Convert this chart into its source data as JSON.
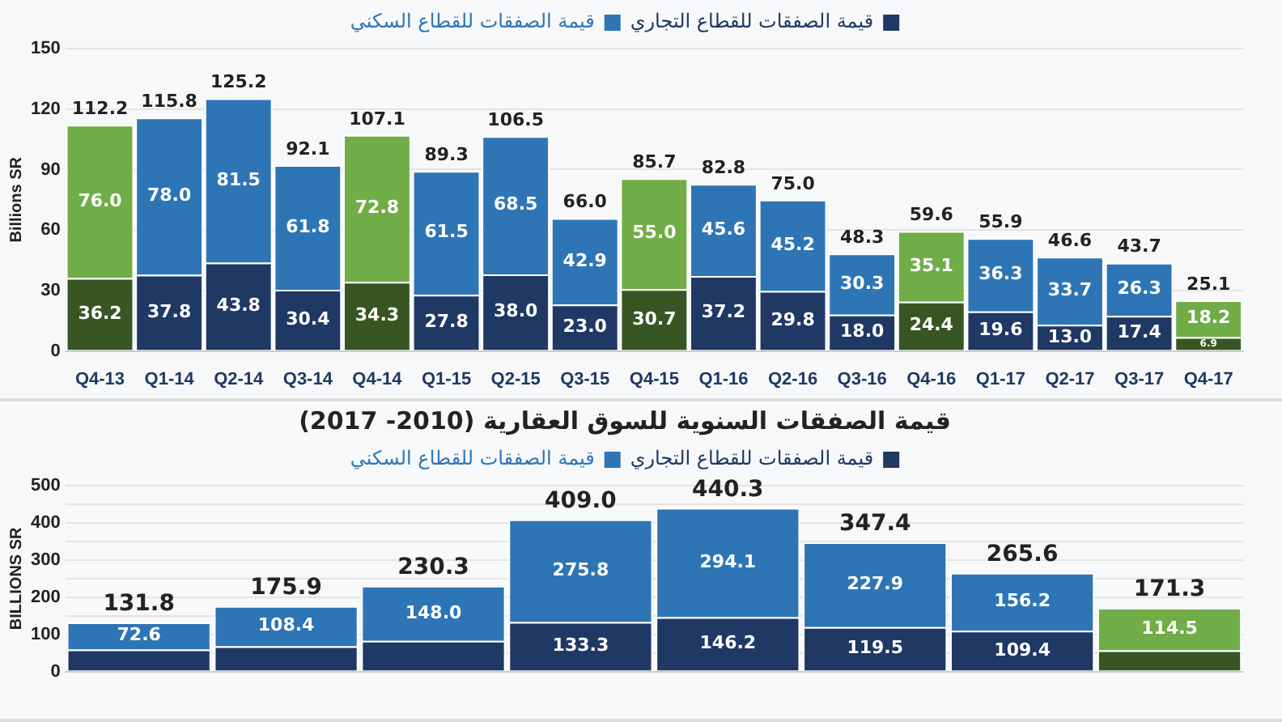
{
  "chart_data": [
    {
      "type": "bar",
      "stacked": true,
      "ylabel": "Billions SR",
      "legend": "top",
      "grid": "y",
      "categories": [
        "Q4-13",
        "Q1-14",
        "Q2-14",
        "Q3-14",
        "Q4-14",
        "Q1-15",
        "Q2-15",
        "Q3-15",
        "Q4-15",
        "Q1-16",
        "Q2-16",
        "Q3-16",
        "Q4-16",
        "Q1-17",
        "Q2-17",
        "Q3-17",
        "Q4-17"
      ],
      "ylim": [
        0,
        150
      ],
      "yticks": [
        0,
        30,
        60,
        90,
        120,
        150
      ],
      "series": [
        {
          "name": "قيمة الصفقات للقطاع التجاري",
          "color": "#1f3864",
          "colors": [
            "#375623",
            "#1f3864",
            "#1f3864",
            "#1f3864",
            "#375623",
            "#1f3864",
            "#1f3864",
            "#1f3864",
            "#375623",
            "#1f3864",
            "#1f3864",
            "#1f3864",
            "#375623",
            "#1f3864",
            "#1f3864",
            "#1f3864",
            "#375623"
          ],
          "values": [
            36.2,
            37.8,
            43.8,
            30.4,
            34.3,
            27.8,
            38.0,
            23.0,
            30.7,
            37.2,
            29.8,
            18.0,
            24.4,
            19.6,
            13.0,
            17.4,
            6.9
          ],
          "value_labels": [
            "36.2",
            "37.8",
            "43.8",
            "30.4",
            "34.3",
            "27.8",
            "38.0",
            "23.0",
            "30.7",
            "37.2",
            "29.8",
            "18.0",
            "24.4",
            "19.6",
            "13.0",
            "17.4",
            "6.9"
          ]
        },
        {
          "name": "قيمة الصفقات للقطاع السكني",
          "color": "#2e75b6",
          "colors": [
            "#70ad47",
            "#2e75b6",
            "#2e75b6",
            "#2e75b6",
            "#70ad47",
            "#2e75b6",
            "#2e75b6",
            "#2e75b6",
            "#70ad47",
            "#2e75b6",
            "#2e75b6",
            "#2e75b6",
            "#70ad47",
            "#2e75b6",
            "#2e75b6",
            "#2e75b6",
            "#70ad47"
          ],
          "values": [
            76.0,
            78.0,
            81.5,
            61.8,
            72.8,
            61.5,
            68.5,
            42.9,
            55.0,
            45.6,
            45.2,
            30.3,
            35.1,
            36.3,
            33.7,
            26.3,
            18.2
          ],
          "value_labels": [
            "76.0",
            "78.0",
            "81.5",
            "61.8",
            "72.8",
            "61.5",
            "68.5",
            "42.9",
            "55.0",
            "45.6",
            "45.2",
            "30.3",
            "35.1",
            "36.3",
            "33.7",
            "26.3",
            "18.2"
          ]
        }
      ],
      "totals": [
        "112.2",
        "115.8",
        "125.2",
        "92.1",
        "107.1",
        "89.3",
        "106.5",
        "66.0",
        "85.7",
        "82.8",
        "75.0",
        "48.3",
        "59.6",
        "55.9",
        "46.6",
        "43.7",
        "25.1"
      ]
    },
    {
      "type": "bar",
      "stacked": true,
      "title": "قيمة الصفقات السنوية للسوق العقارية (2010- 2017)",
      "ylabel": "BILLIONS SR",
      "legend": "top",
      "grid": "y",
      "categories": [
        null,
        null,
        null,
        null,
        null,
        null,
        null,
        null
      ],
      "ylim": [
        0,
        500
      ],
      "yticks": [
        0,
        {
          "value": 50,
          "label": null
        },
        100,
        {
          "value": 150,
          "label": null
        },
        200,
        {
          "value": 250,
          "label": null
        },
        300,
        {
          "value": 350,
          "label": null
        },
        400,
        {
          "value": 450,
          "label": null
        },
        500
      ],
      "series": [
        {
          "name": "قيمة الصفقات للقطاع التجاري",
          "color": "#1f3864",
          "colors": [
            "#1f3864",
            "#1f3864",
            "#1f3864",
            "#1f3864",
            "#1f3864",
            "#1f3864",
            "#1f3864",
            "#375623"
          ],
          "values": [
            59.2,
            67.5,
            82.3,
            133.3,
            146.2,
            119.5,
            109.4,
            56.8
          ],
          "value_labels": [
            null,
            null,
            null,
            "133.3",
            "146.2",
            "119.5",
            "109.4",
            null
          ]
        },
        {
          "name": "قيمة الصفقات للقطاع السكني",
          "color": "#2e75b6",
          "colors": [
            "#2e75b6",
            "#2e75b6",
            "#2e75b6",
            "#2e75b6",
            "#2e75b6",
            "#2e75b6",
            "#2e75b6",
            "#70ad47"
          ],
          "values": [
            72.6,
            108.4,
            148.0,
            275.8,
            294.1,
            227.9,
            156.2,
            114.5
          ],
          "value_labels": [
            "72.6",
            "108.4",
            "148.0",
            "275.8",
            "294.1",
            "227.9",
            "156.2",
            "114.5"
          ]
        }
      ],
      "totals": [
        "131.8",
        "175.9",
        "230.3",
        "409.0",
        "440.3",
        "347.4",
        "265.6",
        "171.3"
      ]
    }
  ]
}
